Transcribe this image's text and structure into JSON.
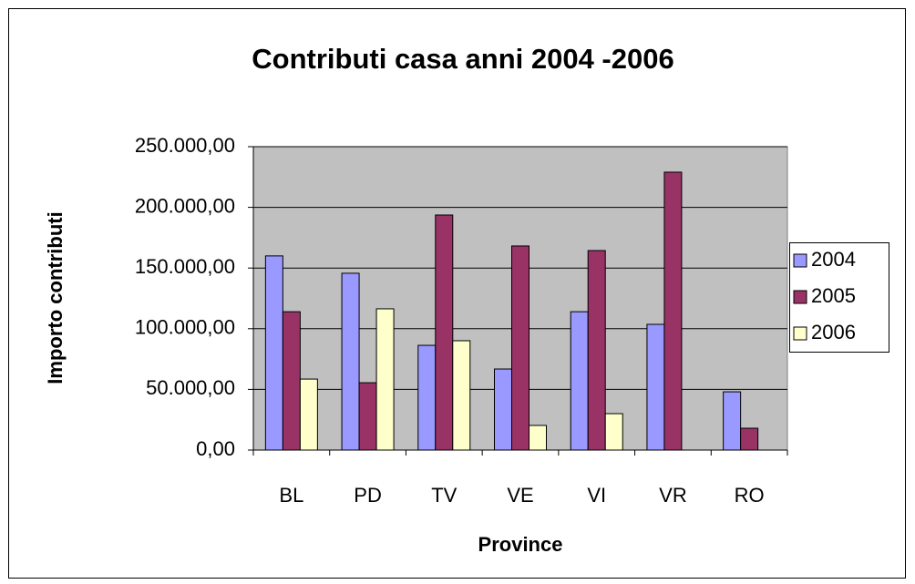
{
  "chart_data": {
    "type": "bar",
    "title": "Contributi casa anni 2004 -2006",
    "x_label": "Province",
    "y_label": "Importo contributi",
    "categories": [
      "BL",
      "PD",
      "TV",
      "VE",
      "VI",
      "VR",
      "RO"
    ],
    "series": [
      {
        "name": "2004",
        "color": "#9999ff",
        "values": [
          160000,
          145700,
          86300,
          66800,
          114000,
          103600,
          48000
        ]
      },
      {
        "name": "2005",
        "color": "#993366",
        "values": [
          114000,
          55500,
          193700,
          168200,
          164400,
          229000,
          18000
        ]
      },
      {
        "name": "2006",
        "color": "#ffffcc",
        "values": [
          58500,
          116400,
          90100,
          20300,
          30000,
          null,
          null
        ]
      }
    ],
    "ylim": [
      0,
      250000
    ],
    "yticks": [
      {
        "value": 0,
        "label": "0,00"
      },
      {
        "value": 50000,
        "label": "50.000,00"
      },
      {
        "value": 100000,
        "label": "100.000,00"
      },
      {
        "value": 150000,
        "label": "150.000,00"
      },
      {
        "value": 200000,
        "label": "200.000,00"
      },
      {
        "value": 250000,
        "label": "250.000,00"
      }
    ],
    "grid": true,
    "legend": "right"
  }
}
